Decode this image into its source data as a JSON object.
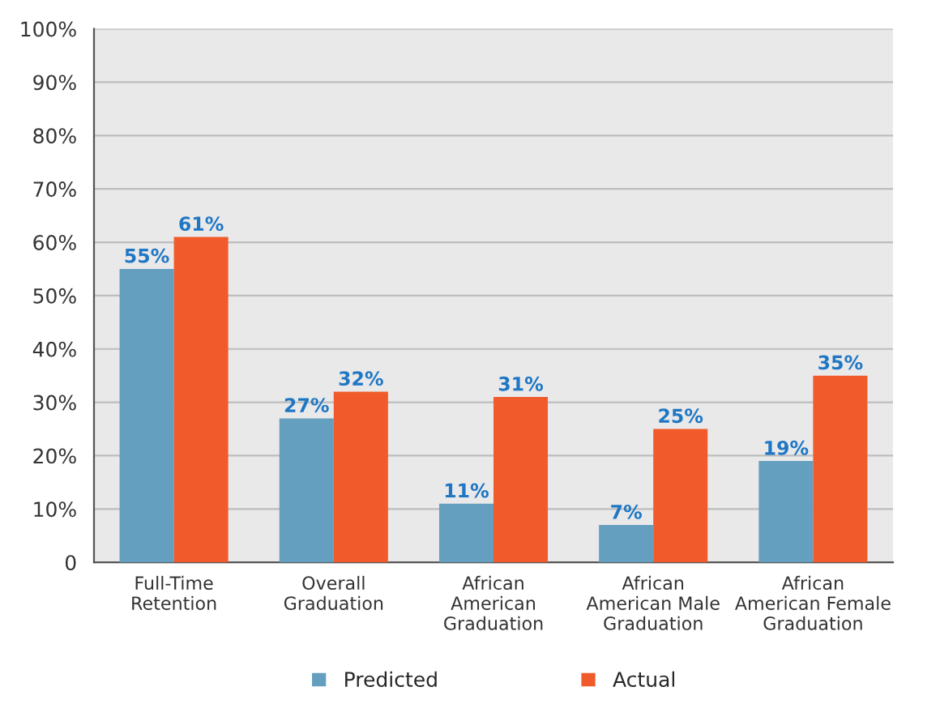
{
  "chart_data": {
    "type": "bar",
    "categories": [
      "Full-Time\nRetention",
      "Overall\nGraduation",
      "African\nAmerican\nGraduation",
      "African\nAmerican Male\nGraduation",
      "African\nAmerican Female\nGraduation"
    ],
    "series": [
      {
        "name": "Predicted",
        "color": "#649fbf",
        "values": [
          55,
          27,
          11,
          7,
          19
        ]
      },
      {
        "name": "Actual",
        "color": "#f15a2b",
        "values": [
          61,
          32,
          31,
          25,
          35
        ]
      }
    ],
    "ylim": [
      0,
      100
    ],
    "yticks": [
      {
        "value": 0,
        "label": "0"
      },
      {
        "value": 10,
        "label": "10%"
      },
      {
        "value": 20,
        "label": "20%"
      },
      {
        "value": 30,
        "label": "30%"
      },
      {
        "value": 40,
        "label": "40%"
      },
      {
        "value": 50,
        "label": "50%"
      },
      {
        "value": 60,
        "label": "60%"
      },
      {
        "value": 70,
        "label": "70%"
      },
      {
        "value": 80,
        "label": "80%"
      },
      {
        "value": 90,
        "label": "90%"
      },
      {
        "value": 100,
        "label": "100%"
      }
    ],
    "value_labels": [
      [
        "55%",
        "27%",
        "11%",
        "7%",
        "19%"
      ],
      [
        "61%",
        "32%",
        "31%",
        "25%",
        "35%"
      ]
    ],
    "grid": "y",
    "legend": "bottom"
  }
}
